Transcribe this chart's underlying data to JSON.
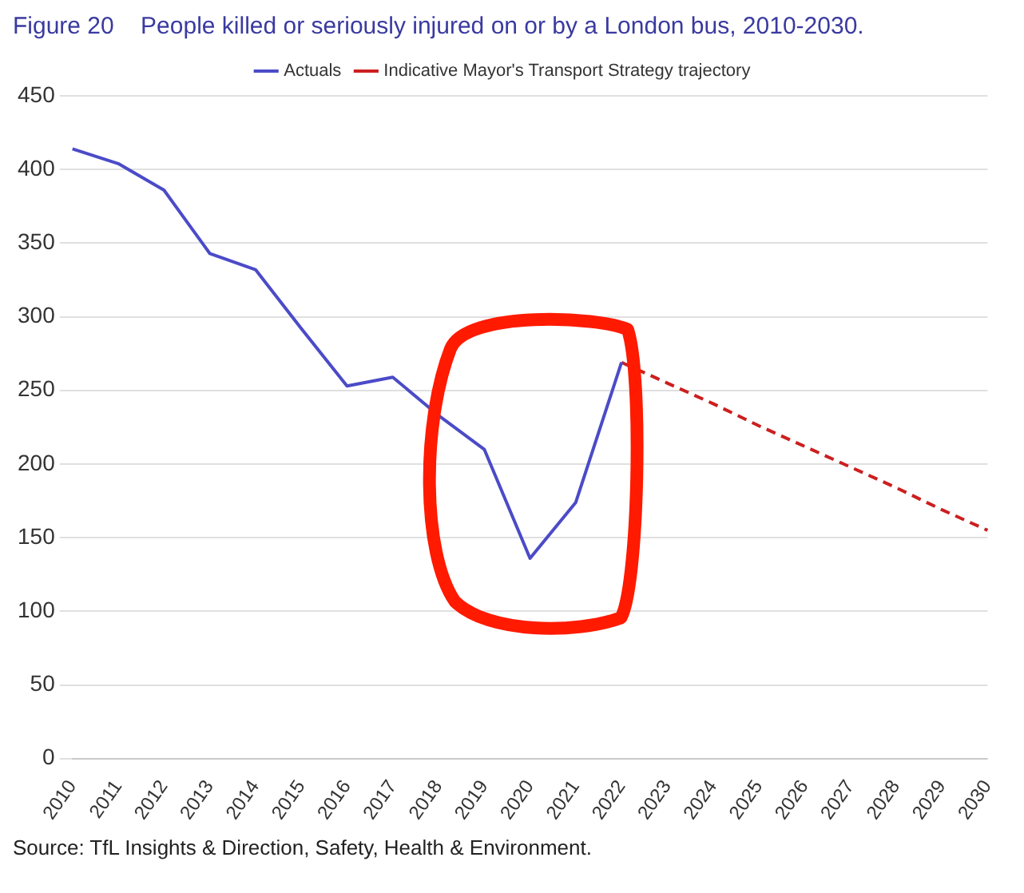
{
  "chart_data": {
    "type": "line",
    "title": "Figure 20    People killed or seriously injured on or by a London bus, 2010-2030.",
    "categories": [
      "2010",
      "2011",
      "2012",
      "2013",
      "2014",
      "2015",
      "2016",
      "2017",
      "2018",
      "2019",
      "2020",
      "2021",
      "2022",
      "2023",
      "2024",
      "2025",
      "2026",
      "2027",
      "2028",
      "2029",
      "2030"
    ],
    "series": [
      {
        "name": "Actuals",
        "color": "#4b4bc8",
        "line_style": "solid",
        "values": [
          414,
          404,
          386,
          343,
          332,
          292,
          253,
          259,
          233,
          210,
          136,
          174,
          269,
          null,
          null,
          null,
          null,
          null,
          null,
          null,
          null
        ]
      },
      {
        "name": "Indicative Mayor's Transport Strategy trajectory",
        "color": "#cc1f1f",
        "line_style": "dashed",
        "values": [
          null,
          null,
          null,
          null,
          null,
          null,
          null,
          null,
          null,
          null,
          null,
          null,
          269,
          255,
          241,
          226,
          212,
          198,
          184,
          169,
          155
        ]
      }
    ],
    "ylim": [
      0,
      450
    ],
    "yticks": [
      0,
      50,
      100,
      150,
      200,
      250,
      300,
      350,
      400,
      450
    ],
    "grid": "y",
    "legend": "top",
    "marker": "none",
    "annotations": [
      "Source: TfL Insights & Direction, Safety, Health & Environment."
    ]
  }
}
